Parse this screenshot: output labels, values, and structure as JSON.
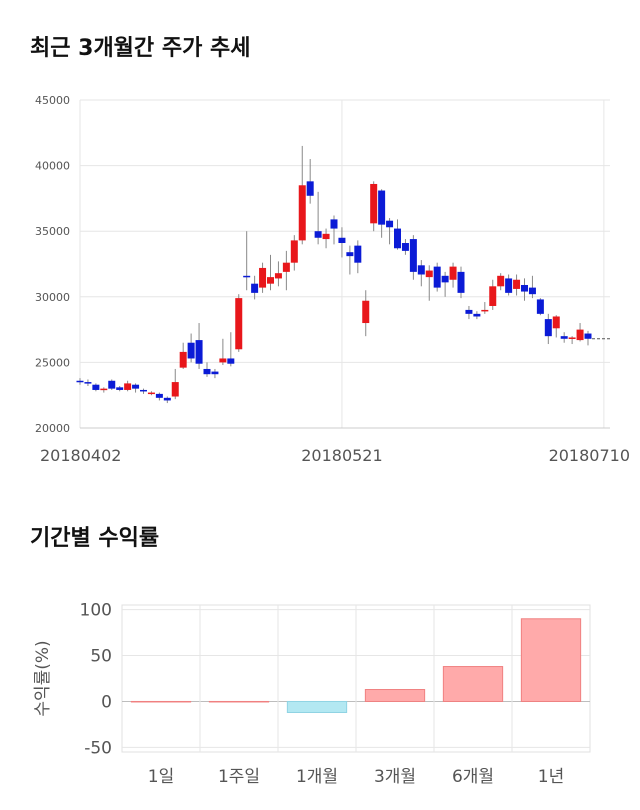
{
  "sections": {
    "price_title": "최근 3개월간 주가 추세",
    "returns_title": "기간별 수익률"
  },
  "colors": {
    "up": "#e8171b",
    "down": "#0b1bd6",
    "pos_bar": "#ffaaaa",
    "neg_bar": "#b3e8f2",
    "grid": "#e6e6e6"
  },
  "chart_data": [
    {
      "type": "candlestick",
      "title": "최근 3개월간 주가 추세",
      "ylim": [
        20000,
        45000
      ],
      "yticks": [
        "45000",
        "40000",
        "35000",
        "30000",
        "25000",
        "20000"
      ],
      "xtick_labels": [
        {
          "index": 0,
          "label": "20180402"
        },
        {
          "index": 33,
          "label": "20180521"
        },
        {
          "index": 66,
          "label": "20180710"
        }
      ],
      "candles": [
        [
          23600,
          23500,
          23800,
          23300
        ],
        [
          23500,
          23400,
          23700,
          23200
        ],
        [
          23300,
          22900,
          23400,
          22800
        ],
        [
          22900,
          23000,
          23100,
          22700
        ],
        [
          23600,
          23000,
          23700,
          22900
        ],
        [
          23100,
          22900,
          23200,
          22800
        ],
        [
          22900,
          23400,
          23600,
          22800
        ],
        [
          23300,
          23000,
          23400,
          22700
        ],
        [
          22900,
          22800,
          23000,
          22600
        ],
        [
          22700,
          22700,
          22800,
          22500
        ],
        [
          22600,
          22300,
          22700,
          22100
        ],
        [
          22300,
          22100,
          22400,
          21900
        ],
        [
          22400,
          23500,
          24500,
          22200
        ],
        [
          24600,
          25800,
          26500,
          24500
        ],
        [
          26500,
          25300,
          27200,
          25000
        ],
        [
          26700,
          24900,
          28000,
          24500
        ],
        [
          24500,
          24100,
          25000,
          23900
        ],
        [
          24300,
          24100,
          24500,
          23800
        ],
        [
          25000,
          25300,
          26800,
          24800
        ],
        [
          25300,
          24900,
          27300,
          24700
        ],
        [
          26000,
          29900,
          30200,
          25800
        ],
        [
          31600,
          31500,
          35000,
          30500
        ],
        [
          31000,
          30300,
          31600,
          29800
        ],
        [
          30700,
          32200,
          32600,
          30300
        ],
        [
          31000,
          31500,
          33200,
          30500
        ],
        [
          31400,
          31800,
          32700,
          30800
        ],
        [
          31900,
          32600,
          33500,
          30500
        ],
        [
          32600,
          34300,
          34700,
          32000
        ],
        [
          34300,
          38500,
          41500,
          34000
        ],
        [
          38800,
          37700,
          40500,
          37100
        ],
        [
          35000,
          34500,
          38000,
          34000
        ],
        [
          34400,
          34800,
          35200,
          33700
        ],
        [
          35900,
          35200,
          36200,
          34000
        ],
        [
          34500,
          34100,
          35300,
          33000
        ],
        [
          33400,
          33100,
          33900,
          31700
        ],
        [
          33900,
          32600,
          34300,
          31800
        ],
        [
          28000,
          29700,
          30500,
          27000
        ],
        [
          35600,
          38600,
          38800,
          35000
        ],
        [
          38100,
          35500,
          38200,
          34500
        ],
        [
          35800,
          35300,
          36000,
          34000
        ],
        [
          35200,
          33700,
          35900,
          33600
        ],
        [
          34100,
          33500,
          34400,
          33200
        ],
        [
          34400,
          31900,
          34700,
          31300
        ],
        [
          32400,
          31700,
          32800,
          30800
        ],
        [
          31500,
          32000,
          32400,
          29700
        ],
        [
          32300,
          30700,
          32600,
          30400
        ],
        [
          31600,
          31100,
          31900,
          30000
        ],
        [
          31300,
          32300,
          32600,
          30700
        ],
        [
          31900,
          30300,
          32300,
          29900
        ],
        [
          29000,
          28700,
          29300,
          28300
        ],
        [
          28700,
          28500,
          28900,
          28300
        ],
        [
          28900,
          29000,
          29600,
          28700
        ],
        [
          29300,
          30800,
          31300,
          29000
        ],
        [
          30800,
          31600,
          31800,
          30500
        ],
        [
          31400,
          30300,
          31700,
          30100
        ],
        [
          30600,
          31300,
          31700,
          30100
        ],
        [
          30900,
          30400,
          31400,
          29700
        ],
        [
          30700,
          30200,
          31600,
          29900
        ],
        [
          29800,
          28700,
          29900,
          28600
        ],
        [
          28300,
          27000,
          28700,
          26400
        ],
        [
          27600,
          28500,
          28600,
          26900
        ],
        [
          27000,
          26800,
          27300,
          26500
        ],
        [
          26900,
          26900,
          27000,
          26400
        ],
        [
          26700,
          27500,
          28000,
          26600
        ],
        [
          27200,
          26800,
          27400,
          26300
        ]
      ],
      "last_value": 26800
    },
    {
      "type": "bar",
      "title": "기간별 수익률",
      "ylabel": "수익률(%)",
      "ylim": [
        -55,
        105
      ],
      "yticks": [
        "100",
        "50",
        "0",
        "-50"
      ],
      "categories": [
        "1일",
        "1주일",
        "1개월",
        "3개월",
        "6개월",
        "1년"
      ],
      "values": [
        0,
        0,
        -12,
        13,
        38,
        90
      ]
    }
  ]
}
